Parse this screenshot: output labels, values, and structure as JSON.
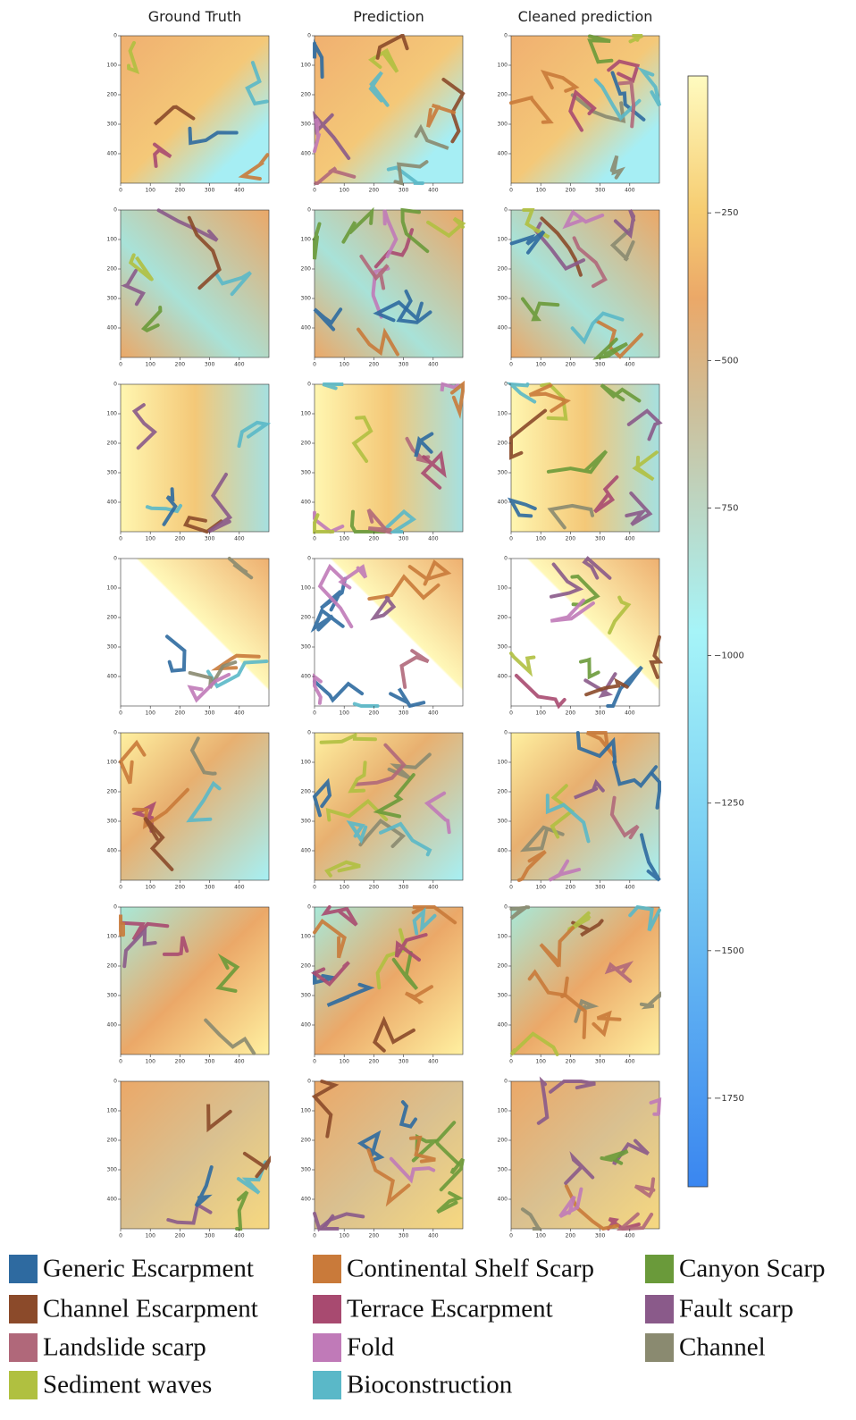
{
  "figure": {
    "columns": [
      "Ground Truth",
      "Prediction",
      "Cleaned prediction"
    ],
    "rows": 7,
    "panel_axes": {
      "xlim": [
        0,
        500
      ],
      "xticks": [
        0,
        100,
        200,
        300,
        400
      ],
      "ylim": [
        0,
        500
      ],
      "yticks": [
        0,
        100,
        200,
        300,
        400
      ]
    },
    "colorbar": {
      "lim": [
        -1900,
        -18
      ],
      "ticks": [
        {
          "value": -250,
          "label": "−250"
        },
        {
          "value": -500,
          "label": "−500"
        },
        {
          "value": -750,
          "label": "−750"
        },
        {
          "value": -1000,
          "label": "−1000"
        },
        {
          "value": -1250,
          "label": "−1250"
        },
        {
          "value": -1500,
          "label": "−1500"
        },
        {
          "value": -1750,
          "label": "−1750"
        }
      ]
    },
    "legend": [
      {
        "name": "Generic Escarpment",
        "color": "#2e6aa0"
      },
      {
        "name": "Continental Shelf Scarp",
        "color": "#c97a3a"
      },
      {
        "name": "Canyon Scarp",
        "color": "#6a9a3a"
      },
      {
        "name": "Channel Escarpment",
        "color": "#8b4a2a"
      },
      {
        "name": "Terrace Escarpment",
        "color": "#a84a70"
      },
      {
        "name": "Fault scarp",
        "color": "#8a5a8a"
      },
      {
        "name": "Landslide scarp",
        "color": "#b0687a"
      },
      {
        "name": "Fold",
        "color": "#c07ab8"
      },
      {
        "name": "Channel",
        "color": "#8a8a70"
      },
      {
        "name": "Sediment waves",
        "color": "#b0c040"
      },
      {
        "name": "Bioconstruction",
        "color": "#5ab8c8"
      }
    ]
  }
}
